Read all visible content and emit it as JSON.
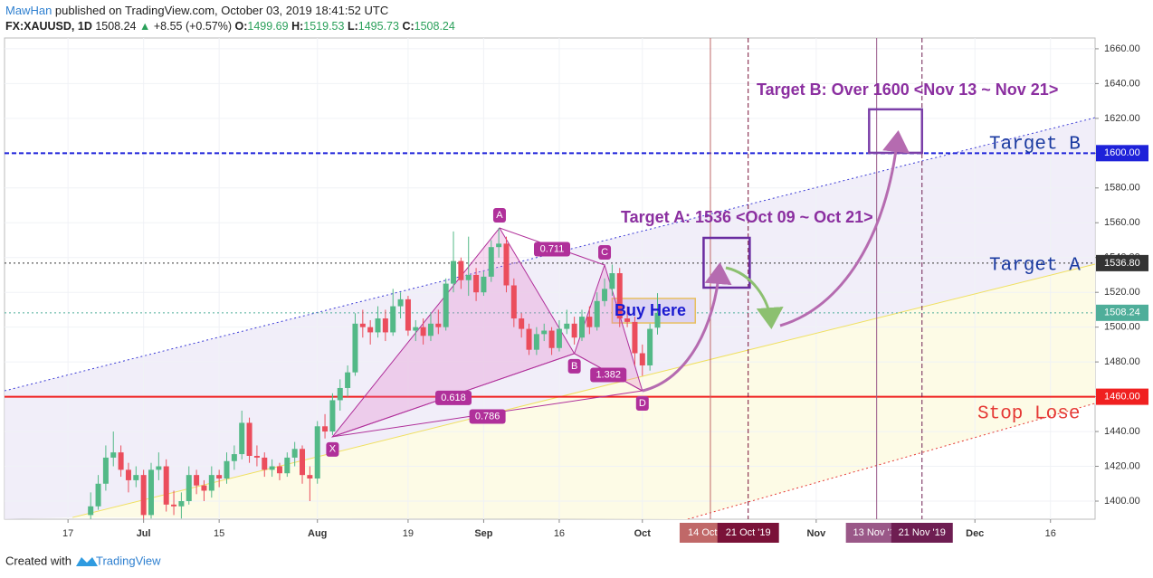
{
  "header": {
    "author": "MawHan",
    "published": "published on TradingView.com, October 03, 2019 18:41:52 UTC",
    "symbol": "FX:XAUUSD, 1D",
    "last": 1508.24,
    "arrow": "▲",
    "change": "+8.55 (+0.57%)",
    "o_label": "O:",
    "open": 1499.69,
    "h_label": "H:",
    "high": 1519.53,
    "l_label": "L:",
    "low": 1495.73,
    "c_label": "C:",
    "close": 1508.24
  },
  "chart_data": {
    "type": "candlestick",
    "up_color": "#53b987",
    "down_color": "#eb4d5c",
    "grid": true,
    "xlim": [
      -8.4,
      135.9
    ],
    "ylim": [
      1389.6,
      1666.2
    ],
    "xticks": [
      {
        "value": 0,
        "label": "17"
      },
      {
        "value": 10,
        "label": "Jul"
      },
      {
        "value": 20,
        "label": "15"
      },
      {
        "value": 33,
        "label": "Aug"
      },
      {
        "value": 45,
        "label": "19"
      },
      {
        "value": 55,
        "label": "Sep"
      },
      {
        "value": 65,
        "label": "16"
      },
      {
        "value": 76,
        "label": "Oct"
      },
      {
        "value": 99,
        "label": "Nov"
      },
      {
        "value": 120,
        "label": "Dec"
      },
      {
        "value": 130,
        "label": "16"
      }
    ],
    "yticks": [
      {
        "value": 1400,
        "label": "1400.00"
      },
      {
        "value": 1420,
        "label": "1420.00"
      },
      {
        "value": 1440,
        "label": "1440.00"
      },
      {
        "value": 1460,
        "label": "1460.00"
      },
      {
        "value": 1480,
        "label": "1480.00"
      },
      {
        "value": 1500,
        "label": "1500.00"
      },
      {
        "value": 1520,
        "label": "1520.00"
      },
      {
        "value": 1540,
        "label": "1540.00"
      },
      {
        "value": 1560,
        "label": "1560.00"
      },
      {
        "value": 1580,
        "label": "1580.00"
      },
      {
        "value": 1600,
        "label": "1600.00"
      },
      {
        "value": 1620,
        "label": "1620.00"
      },
      {
        "value": 1640,
        "label": "1640.00"
      },
      {
        "value": 1660,
        "label": "1660.00"
      }
    ],
    "x": [
      3,
      4,
      5,
      6,
      7,
      8,
      9,
      10,
      11,
      12,
      13,
      14,
      15,
      16,
      17,
      18,
      19,
      20,
      21,
      22,
      23,
      24,
      25,
      26,
      27,
      28,
      29,
      30,
      31,
      32,
      33,
      34,
      35,
      36,
      37,
      38,
      39,
      40,
      41,
      42,
      43,
      44,
      45,
      46,
      47,
      48,
      49,
      50,
      51,
      52,
      53,
      54,
      55,
      56,
      57,
      58,
      59,
      60,
      61,
      62,
      63,
      64,
      65,
      66,
      67,
      68,
      69,
      70,
      71,
      72,
      73,
      74,
      75,
      76,
      77,
      78
    ],
    "open": [
      1392,
      1397,
      1410,
      1425,
      1428,
      1418,
      1412,
      1415,
      1392,
      1418,
      1420,
      1398,
      1397,
      1400,
      1415,
      1409,
      1406,
      1415,
      1413,
      1423,
      1427,
      1445,
      1426,
      1425,
      1418,
      1420,
      1416,
      1425,
      1430,
      1415,
      1413,
      1443,
      1440,
      1458,
      1465,
      1474,
      1502,
      1500,
      1497,
      1505,
      1497,
      1512,
      1516,
      1498,
      1500,
      1495,
      1502,
      1500,
      1525,
      1538,
      1527,
      1530,
      1520,
      1529,
      1546,
      1548,
      1524,
      1505,
      1499,
      1487,
      1496,
      1498,
      1488,
      1499,
      1502,
      1494,
      1506,
      1500,
      1515,
      1522,
      1531,
      1505,
      1503,
      1485,
      1478,
      1499.69
    ],
    "high": [
      1405,
      1415,
      1432,
      1440,
      1432,
      1422,
      1420,
      1418,
      1422,
      1428,
      1424,
      1406,
      1405,
      1420,
      1418,
      1412,
      1420,
      1418,
      1428,
      1432,
      1452,
      1448,
      1432,
      1428,
      1424,
      1422,
      1428,
      1434,
      1432,
      1420,
      1446,
      1450,
      1462,
      1470,
      1478,
      1508,
      1510,
      1504,
      1512,
      1510,
      1522,
      1520,
      1518,
      1504,
      1505,
      1508,
      1510,
      1528,
      1555,
      1540,
      1552,
      1534,
      1532,
      1550,
      1557,
      1552,
      1528,
      1508,
      1502,
      1500,
      1502,
      1500,
      1504,
      1510,
      1506,
      1510,
      1512,
      1520,
      1528,
      1536,
      1534,
      1512,
      1506,
      1490,
      1502,
      1519.53
    ],
    "low": [
      1389,
      1395,
      1406,
      1420,
      1414,
      1405,
      1408,
      1389,
      1390,
      1412,
      1394,
      1392,
      1390,
      1398,
      1404,
      1400,
      1402,
      1408,
      1410,
      1418,
      1424,
      1422,
      1420,
      1414,
      1414,
      1412,
      1414,
      1420,
      1410,
      1400,
      1410,
      1436,
      1438,
      1452,
      1460,
      1472,
      1494,
      1490,
      1494,
      1492,
      1495,
      1505,
      1495,
      1492,
      1490,
      1492,
      1496,
      1498,
      1520,
      1522,
      1518,
      1515,
      1518,
      1526,
      1540,
      1520,
      1500,
      1494,
      1484,
      1484,
      1492,
      1484,
      1486,
      1496,
      1490,
      1492,
      1496,
      1498,
      1512,
      1518,
      1500,
      1500,
      1478,
      1472,
      1475,
      1495.73
    ],
    "close": [
      1397,
      1410,
      1425,
      1428,
      1418,
      1412,
      1415,
      1392,
      1418,
      1420,
      1398,
      1397,
      1400,
      1415,
      1409,
      1406,
      1415,
      1413,
      1423,
      1427,
      1445,
      1426,
      1425,
      1418,
      1420,
      1416,
      1425,
      1430,
      1415,
      1413,
      1443,
      1440,
      1458,
      1465,
      1474,
      1502,
      1500,
      1497,
      1505,
      1497,
      1512,
      1516,
      1498,
      1500,
      1495,
      1502,
      1500,
      1525,
      1538,
      1527,
      1530,
      1520,
      1529,
      1546,
      1548,
      1524,
      1505,
      1499,
      1487,
      1496,
      1498,
      1488,
      1499,
      1502,
      1494,
      1506,
      1500,
      1515,
      1522,
      1531,
      1505,
      1503,
      1485,
      1478,
      1499,
      1508.24
    ],
    "trend_lines": [
      {
        "x": [
          -8.4,
          135.9
        ],
        "y": [
          1463.4,
          1620.4
        ],
        "color": "#3b3bd6",
        "style": "dotted"
      },
      {
        "x": [
          0.6,
          135.9
        ],
        "y": [
          1390.6,
          1536.2
        ],
        "color": "#f0e060",
        "style": "solid"
      },
      {
        "x": [
          82,
          135.9
        ],
        "y": [
          1389.6,
          1456.2
        ],
        "color": "#e53935",
        "style": "dotted"
      }
    ],
    "price_lines": [
      {
        "value": 1600,
        "label": "1600.00",
        "color": "#1e22d9",
        "style": "dashed"
      },
      {
        "value": 1536.8,
        "label": "1536.80",
        "color": "#333333",
        "style": "dotted"
      },
      {
        "value": 1508.24,
        "label": "1508.24",
        "color": "#4fae9a",
        "style": "dotted"
      },
      {
        "value": 1460,
        "label": "1460.00",
        "color": "#f02020",
        "style": "solid"
      }
    ],
    "date_lines": [
      {
        "x": 85,
        "label": "14 Oct '19",
        "color": "#c06868",
        "style": "solid"
      },
      {
        "x": 90,
        "label": "21 Oct '19",
        "color": "#7a1238",
        "style": "dashed"
      },
      {
        "x": 107,
        "label": "13 Nov '19",
        "color": "#9a5888",
        "style": "solid"
      },
      {
        "x": 113,
        "label": "21 Nov '19",
        "color": "#6e1e52",
        "style": "dashed"
      }
    ],
    "boxes": [
      {
        "x": [
          84.1,
          90.2
        ],
        "y": [
          1522.7,
          1551.3
        ],
        "color": "#6a2ca0"
      },
      {
        "x": [
          106,
          113
        ],
        "y": [
          1600.2,
          1625.2
        ],
        "color": "#7b3fa8"
      },
      {
        "x": [
          72,
          83
        ],
        "y": [
          1502.4,
          1516.5
        ],
        "color": "#e8c060",
        "fill": "#dcd4f4"
      }
    ],
    "harmonic": {
      "color": "#b0309a",
      "points": [
        {
          "label": "X",
          "x": 35,
          "y": 1437
        },
        {
          "label": "A",
          "x": 57.1,
          "y": 1557
        },
        {
          "label": "B",
          "x": 67,
          "y": 1484.8
        },
        {
          "label": "C",
          "x": 71,
          "y": 1535.7
        },
        {
          "label": "D",
          "x": 76,
          "y": 1463.4
        }
      ],
      "ratios": [
        0.618,
        0.711,
        1.382,
        0.786
      ]
    },
    "annotations": [
      "Target A: 1536 <Oct 09 ~ Oct 21>",
      "Target B: Over 1600 <Nov 13 ~ Nov 21>",
      "Target B",
      "Target A",
      "Stop Lose",
      "Buy Here"
    ]
  },
  "footer": {
    "created": "Created with",
    "brand": "TradingView"
  }
}
